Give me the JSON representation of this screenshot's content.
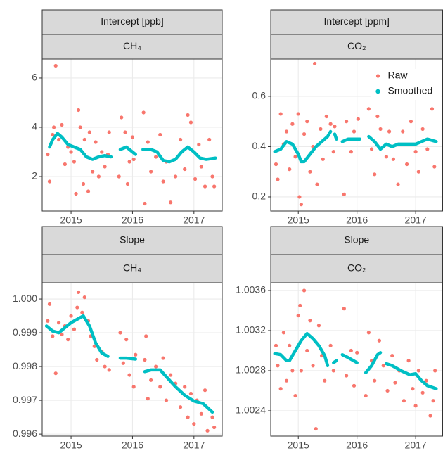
{
  "chart_data": [
    {
      "type": "scatter",
      "title": "Intercept [ppb]",
      "subtitle": "CH₄",
      "xlim": [
        2014.53,
        2017.46
      ],
      "xticks": [
        2015,
        2016,
        2017
      ],
      "ylim": [
        0.6,
        6.77
      ],
      "yticks": [
        2,
        4,
        6
      ],
      "grid": true,
      "series": [
        {
          "color": "#f8766d",
          "mode": "points",
          "x": [
            2014.62,
            2014.65,
            2014.7,
            2014.72,
            2014.75,
            2014.8,
            2014.85,
            2014.9,
            2014.95,
            2015.0,
            2015.05,
            2015.08,
            2015.12,
            2015.15,
            2015.2,
            2015.22,
            2015.28,
            2015.3,
            2015.35,
            2015.4,
            2015.45,
            2015.5,
            2015.55,
            2015.6,
            2015.62,
            2015.78,
            2015.82,
            2015.88,
            2015.92,
            2015.95,
            2016.0,
            2016.02,
            2016.18,
            2016.2,
            2016.25,
            2016.3,
            2016.38,
            2016.45,
            2016.5,
            2016.55,
            2016.62,
            2016.7,
            2016.78,
            2016.85,
            2016.9,
            2016.95,
            2017.02,
            2017.08,
            2017.12,
            2017.18,
            2017.25,
            2017.3,
            2017.33
          ],
          "values": [
            2.9,
            1.8,
            3.7,
            4.0,
            6.5,
            3.5,
            4.1,
            2.5,
            3.2,
            3.0,
            2.6,
            1.3,
            4.7,
            4.0,
            1.7,
            3.5,
            1.4,
            3.8,
            2.2,
            3.4,
            2.0,
            3.0,
            2.4,
            2.9,
            3.8,
            2.0,
            4.4,
            3.8,
            1.7,
            2.6,
            3.6,
            2.7,
            4.6,
            0.9,
            3.4,
            2.2,
            2.8,
            3.7,
            1.8,
            2.6,
            0.95,
            2.0,
            3.5,
            2.3,
            4.5,
            4.2,
            1.9,
            3.3,
            2.4,
            1.6,
            3.5,
            2.0,
            1.6
          ]
        },
        {
          "color": "#00bfc4",
          "mode": "line",
          "x": [
            2014.65,
            2014.7,
            2014.78,
            2014.85,
            2014.95,
            2015.05,
            2015.15,
            2015.25,
            2015.35,
            2015.45,
            2015.55,
            2015.65,
            2015.72,
            2015.8,
            2015.9,
            2016.0,
            2016.05,
            2016.11,
            2016.17,
            2016.3,
            2016.4,
            2016.5,
            2016.6,
            2016.7,
            2016.8,
            2016.9,
            2017.0,
            2017.1,
            2017.2,
            2017.35
          ],
          "values": [
            3.2,
            3.5,
            3.75,
            3.6,
            3.3,
            3.2,
            3.1,
            2.8,
            2.7,
            2.8,
            2.85,
            2.8,
            null,
            3.1,
            3.2,
            3.0,
            2.9,
            null,
            3.1,
            3.1,
            3.0,
            2.65,
            2.6,
            2.7,
            3.0,
            3.2,
            3.0,
            2.75,
            2.7,
            2.75
          ]
        }
      ]
    },
    {
      "type": "scatter",
      "title": "Intercept [ppm]",
      "subtitle": "CO₂",
      "legend": "top-right",
      "xlim": [
        2014.53,
        2017.46
      ],
      "xticks": [
        2015,
        2016,
        2017
      ],
      "ylim": [
        0.144,
        0.748
      ],
      "yticks": [
        0.2,
        0.4,
        0.6
      ],
      "grid": true,
      "series": [
        {
          "name": "Raw",
          "color": "#f8766d",
          "mode": "points",
          "x": [
            2014.62,
            2014.65,
            2014.7,
            2014.75,
            2014.8,
            2014.85,
            2014.9,
            2014.95,
            2015.0,
            2015.02,
            2015.05,
            2015.1,
            2015.15,
            2015.2,
            2015.25,
            2015.28,
            2015.32,
            2015.38,
            2015.42,
            2015.48,
            2015.55,
            2015.6,
            2015.62,
            2015.78,
            2015.82,
            2015.9,
            2015.95,
            2016.02,
            2016.2,
            2016.25,
            2016.3,
            2016.35,
            2016.4,
            2016.5,
            2016.55,
            2016.62,
            2016.7,
            2016.78,
            2016.85,
            2016.92,
            2017.0,
            2017.05,
            2017.12,
            2017.2,
            2017.28,
            2017.32
          ],
          "values": [
            0.33,
            0.27,
            0.53,
            0.41,
            0.46,
            0.31,
            0.49,
            0.36,
            0.53,
            0.2,
            0.17,
            0.45,
            0.5,
            0.3,
            0.4,
            0.73,
            0.25,
            0.47,
            0.35,
            0.52,
            0.49,
            0.38,
            0.48,
            0.21,
            0.5,
            0.38,
            0.46,
            0.51,
            0.55,
            0.39,
            0.29,
            0.52,
            0.47,
            0.36,
            0.46,
            0.35,
            0.25,
            0.46,
            0.33,
            0.5,
            0.38,
            0.3,
            0.47,
            0.39,
            0.55,
            0.32
          ]
        },
        {
          "name": "Smoothed",
          "color": "#00bfc4",
          "mode": "line",
          "x": [
            2014.6,
            2014.7,
            2014.8,
            2014.9,
            2015.0,
            2015.05,
            2015.1,
            2015.2,
            2015.3,
            2015.4,
            2015.5,
            2015.55,
            2015.58,
            2015.62,
            2015.65,
            2015.7,
            2015.75,
            2015.85,
            2016.0,
            2016.05,
            2016.12,
            2016.2,
            2016.3,
            2016.4,
            2016.5,
            2016.6,
            2016.7,
            2016.85,
            2017.0,
            2017.1,
            2017.2,
            2017.35
          ],
          "values": [
            0.38,
            0.39,
            0.42,
            0.41,
            0.37,
            0.34,
            0.34,
            0.37,
            0.4,
            0.42,
            0.44,
            0.46,
            null,
            0.45,
            0.43,
            null,
            0.42,
            0.43,
            0.43,
            0.43,
            null,
            0.44,
            0.42,
            0.39,
            0.41,
            0.4,
            0.41,
            0.41,
            0.41,
            0.42,
            0.43,
            0.42
          ]
        }
      ]
    },
    {
      "type": "scatter",
      "title": "Slope",
      "subtitle": "CH₄",
      "xlim": [
        2014.53,
        2017.46
      ],
      "xticks": [
        2015,
        2016,
        2017
      ],
      "ylim": [
        0.99594,
        1.00048
      ],
      "yticks": [
        {
          "value": 1,
          "label": "1.000"
        },
        0.999,
        0.998,
        0.997,
        0.996
      ],
      "grid": true,
      "series": [
        {
          "color": "#f8766d",
          "mode": "points",
          "x": [
            2014.62,
            2014.65,
            2014.7,
            2014.75,
            2014.8,
            2014.85,
            2014.9,
            2014.95,
            2015.0,
            2015.05,
            2015.1,
            2015.12,
            2015.18,
            2015.22,
            2015.28,
            2015.32,
            2015.38,
            2015.42,
            2015.5,
            2015.55,
            2015.62,
            2015.8,
            2015.85,
            2015.9,
            2015.95,
            2016.02,
            2016.05,
            2016.2,
            2016.22,
            2016.25,
            2016.3,
            2016.38,
            2016.45,
            2016.5,
            2016.55,
            2016.62,
            2016.7,
            2016.78,
            2016.85,
            2016.9,
            2016.95,
            2017.0,
            2017.05,
            2017.12,
            2017.18,
            2017.22,
            2017.3,
            2017.33
          ],
          "values": [
            0.99935,
            0.99985,
            0.9989,
            0.9978,
            0.9993,
            0.99895,
            0.9992,
            0.9988,
            0.9995,
            0.9991,
            0.99975,
            1.0002,
            0.9996,
            1.00005,
            0.99935,
            0.9989,
            0.9986,
            0.9982,
            0.99845,
            0.998,
            0.9979,
            0.999,
            0.9981,
            0.9988,
            0.99775,
            0.9974,
            0.99835,
            0.9982,
            0.9989,
            0.99705,
            0.9976,
            0.998,
            0.9974,
            0.99825,
            0.997,
            0.99775,
            0.9975,
            0.9968,
            0.9974,
            0.9965,
            0.9972,
            0.9963,
            0.997,
            0.9966,
            0.9973,
            0.9961,
            0.9965,
            0.9962
          ]
        },
        {
          "color": "#00bfc4",
          "mode": "line",
          "x": [
            2014.6,
            2014.7,
            2014.8,
            2014.9,
            2015.0,
            2015.1,
            2015.2,
            2015.3,
            2015.4,
            2015.5,
            2015.6,
            2015.7,
            2015.8,
            2015.9,
            2016.05,
            2016.12,
            2016.2,
            2016.3,
            2016.45,
            2016.55,
            2016.7,
            2016.85,
            2017.0,
            2017.15,
            2017.3
          ],
          "values": [
            0.9992,
            0.99905,
            0.999,
            0.99915,
            0.9993,
            0.9994,
            0.9995,
            0.9992,
            0.9987,
            0.9984,
            0.9983,
            null,
            0.99825,
            0.99825,
            0.99822,
            null,
            0.99785,
            0.9979,
            0.9979,
            0.9977,
            0.9974,
            0.99715,
            0.99698,
            0.9969,
            0.99665
          ]
        }
      ]
    },
    {
      "type": "scatter",
      "title": "Slope",
      "subtitle": "CO₂",
      "xlim": [
        2014.53,
        2017.46
      ],
      "xticks": [
        2015,
        2016,
        2017
      ],
      "ylim": [
        1.002147,
        1.003677
      ],
      "yticks": [
        1.0024,
        1.0028,
        1.0032,
        1.0036
      ],
      "grid": true,
      "series": [
        {
          "color": "#f8766d",
          "mode": "points",
          "x": [
            2014.62,
            2014.65,
            2014.7,
            2014.75,
            2014.8,
            2014.85,
            2014.9,
            2014.95,
            2015.0,
            2015.03,
            2015.05,
            2015.1,
            2015.15,
            2015.2,
            2015.25,
            2015.3,
            2015.35,
            2015.4,
            2015.45,
            2015.55,
            2015.6,
            2015.78,
            2015.82,
            2015.9,
            2015.95,
            2016.0,
            2016.15,
            2016.2,
            2016.25,
            2016.3,
            2016.38,
            2016.45,
            2016.52,
            2016.6,
            2016.65,
            2016.72,
            2016.8,
            2016.88,
            2016.95,
            2017.0,
            2017.05,
            2017.12,
            2017.18,
            2017.25,
            2017.3,
            2017.33
          ],
          "values": [
            1.00305,
            1.00285,
            1.00262,
            1.00318,
            1.0027,
            1.00305,
            1.0028,
            1.00255,
            1.00335,
            1.00345,
            1.0028,
            1.0036,
            1.003,
            1.0033,
            1.00285,
            1.00222,
            1.00325,
            1.00295,
            1.0027,
            1.00305,
            1.0028,
            1.00342,
            1.00275,
            1.003,
            1.00265,
            1.00298,
            1.00255,
            1.00318,
            1.0029,
            1.0027,
            1.0031,
            1.00285,
            1.0026,
            1.00295,
            1.00268,
            1.0028,
            1.0025,
            1.0029,
            1.00262,
            1.00245,
            1.0028,
            1.00258,
            1.0027,
            1.00235,
            1.0025,
            1.0028
          ]
        },
        {
          "color": "#00bfc4",
          "mode": "line",
          "x": [
            2014.6,
            2014.7,
            2014.8,
            2014.85,
            2014.95,
            2015.05,
            2015.15,
            2015.25,
            2015.35,
            2015.45,
            2015.5,
            2015.55,
            2015.6,
            2015.65,
            2015.7,
            2015.75,
            2015.85,
            2016.0,
            2016.08,
            2016.15,
            2016.25,
            2016.35,
            2016.4,
            2016.45,
            2016.5,
            2016.6,
            2016.75,
            2016.9,
            2017.0,
            2017.1,
            2017.2,
            2017.35
          ],
          "values": [
            1.00297,
            1.00296,
            1.0029,
            1.0029,
            1.003,
            1.0031,
            1.00317,
            1.00312,
            1.00305,
            1.00295,
            1.00285,
            null,
            1.00288,
            1.0029,
            null,
            1.00296,
            1.00293,
            1.00288,
            null,
            1.00278,
            1.00285,
            1.00296,
            1.00298,
            null,
            1.00287,
            1.00285,
            1.0028,
            1.00276,
            1.00277,
            1.0027,
            1.00265,
            1.00262
          ]
        }
      ]
    }
  ]
}
